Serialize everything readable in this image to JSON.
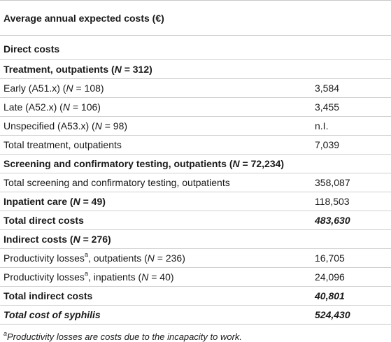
{
  "table": {
    "header": "Average annual expected costs (€)",
    "rows": [
      {
        "label": "Direct costs",
        "value": ""
      },
      {
        "label_pre": "Treatment, outpatients (",
        "n_label": "N",
        "label_post": " = 312)",
        "value": ""
      },
      {
        "label_pre": "Early (A51.x) (",
        "n_label": "N",
        "label_post": " = 108)",
        "value": "3,584"
      },
      {
        "label_pre": "Late (A52.x) (",
        "n_label": "N",
        "label_post": " = 106)",
        "value": "3,455"
      },
      {
        "label_pre": "Unspecified (A53.x) (",
        "n_label": "N",
        "label_post": " = 98)",
        "value": "n.I."
      },
      {
        "label": "Total treatment, outpatients",
        "value": "7,039"
      },
      {
        "label_pre": "Screening and confirmatory testing, outpatients (",
        "n_label": "N",
        "label_post": " = 72,234)",
        "value": ""
      },
      {
        "label": "Total screening and confirmatory testing, outpatients",
        "value": "358,087"
      },
      {
        "label_pre": "Inpatient care (",
        "n_label": "N",
        "label_post": " = 49)",
        "value": "118,503"
      },
      {
        "label": "Total direct costs",
        "value": "483,630"
      },
      {
        "label_pre": "Indirect costs (",
        "n_label": "N",
        "label_post": " = 276)",
        "value": ""
      },
      {
        "label_pre": "Productivity losses",
        "sup": "a",
        "label_mid": ", outpatients (",
        "n_label": "N",
        "label_post": " = 236)",
        "value": "16,705"
      },
      {
        "label_pre": "Productivity losses",
        "sup": "a",
        "label_mid": ", inpatients (",
        "n_label": "N",
        "label_post": " = 40)",
        "value": "24,096"
      },
      {
        "label": "Total indirect costs",
        "value": "40,801"
      },
      {
        "label": "Total cost of syphilis",
        "value": "524,430"
      }
    ]
  },
  "footnote": {
    "sup": "a",
    "text": "Productivity losses are costs due to the incapacity to work."
  }
}
